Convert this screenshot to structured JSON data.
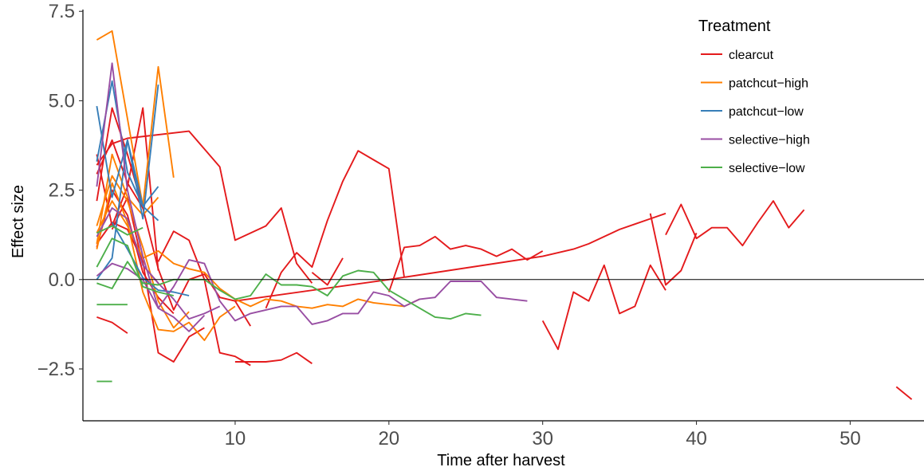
{
  "chart_data": {
    "type": "line",
    "xlabel": "Time after harvest",
    "ylabel": "Effect size",
    "xlim": [
      0.1,
      54.8
    ],
    "ylim": [
      -3.95,
      7.55
    ],
    "x_ticks": [
      10,
      20,
      30,
      40,
      50
    ],
    "y_ticks": [
      -2.5,
      0.0,
      2.5,
      5.0,
      7.5
    ],
    "x_tick_labels": [
      "10",
      "20",
      "30",
      "40",
      "50"
    ],
    "y_tick_labels": [
      "−2.5",
      "0.0",
      "2.5",
      "5.0",
      "7.5"
    ],
    "reference_line_y": 0,
    "grid": false,
    "legend": {
      "title": "Treatment",
      "position": "top-right",
      "entries": [
        {
          "label": "clearcut",
          "color": "#e41a1c"
        },
        {
          "label": "patchcut−high",
          "color": "#ff7f00"
        },
        {
          "label": "patchcut−low",
          "color": "#377eb8"
        },
        {
          "label": "selective−high",
          "color": "#984ea3"
        },
        {
          "label": "selective−low",
          "color": "#4daf4a"
        }
      ]
    },
    "series": [
      {
        "group": 0,
        "x": [
          1,
          2,
          3,
          7,
          9,
          10,
          12,
          13,
          14,
          15
        ],
        "y": [
          3.2,
          3.8,
          3.95,
          4.15,
          3.15,
          1.1,
          1.5,
          2.0,
          0.45,
          -0.1
        ]
      },
      {
        "group": 0,
        "x": [
          12,
          13,
          14,
          15,
          16,
          17,
          18,
          19,
          20,
          21
        ],
        "y": [
          -0.8,
          0.2,
          0.75,
          0.35,
          1.65,
          2.75,
          3.6,
          3.35,
          3.1,
          0.05
        ]
      },
      {
        "group": 0,
        "x": [
          10,
          11,
          12,
          13,
          14,
          15
        ],
        "y": [
          -2.3,
          -2.3,
          -2.3,
          -2.25,
          -2.05,
          -2.35
        ]
      },
      {
        "group": 0,
        "x": [
          20,
          21,
          22,
          23,
          24,
          25,
          26,
          27,
          28,
          29,
          30
        ],
        "y": [
          -0.35,
          0.9,
          0.95,
          1.2,
          0.85,
          0.95,
          0.85,
          0.65,
          0.85,
          0.55,
          0.8
        ]
      },
      {
        "group": 0,
        "x": [
          1,
          2,
          3
        ],
        "y": [
          -1.05,
          -1.2,
          -1.5
        ]
      },
      {
        "group": 0,
        "x": [
          1,
          2,
          3,
          4,
          5,
          6,
          7,
          8
        ],
        "y": [
          1.0,
          1.6,
          1.4,
          0.5,
          -2.05,
          -2.3,
          -1.6,
          -1.35
        ]
      },
      {
        "group": 0,
        "x": [
          1,
          2,
          3,
          4,
          5,
          6,
          7,
          8,
          9,
          10,
          11
        ],
        "y": [
          2.2,
          4.8,
          3.5,
          2.0,
          0.3,
          -0.85,
          0.0,
          0.15,
          -0.5,
          -0.6,
          -1.3
        ]
      },
      {
        "group": 0,
        "x": [
          5,
          6,
          7,
          8,
          9,
          10,
          11
        ],
        "y": [
          0.5,
          1.35,
          1.1,
          0.0,
          -2.05,
          -2.15,
          -2.4
        ]
      },
      {
        "group": 0,
        "x": [
          30,
          31,
          32,
          33,
          34,
          35,
          36,
          37,
          38
        ],
        "y": [
          -1.15,
          -1.95,
          -0.35,
          -0.6,
          0.4,
          -0.95,
          -0.75,
          0.4,
          -0.3
        ]
      },
      {
        "group": 0,
        "x": [
          38,
          39,
          40,
          41,
          42,
          43,
          44,
          45,
          46,
          47
        ],
        "y": [
          1.25,
          2.1,
          1.15,
          1.45,
          1.45,
          0.95,
          1.6,
          2.2,
          1.45,
          1.95
        ]
      },
      {
        "group": 0,
        "x": [
          37,
          38,
          39,
          40
        ],
        "y": [
          1.85,
          -0.15,
          0.25,
          1.3
        ]
      },
      {
        "group": 0,
        "x": [
          10,
          20,
          30,
          31,
          32,
          33,
          34,
          35,
          36,
          37,
          38
        ],
        "y": [
          -0.6,
          0.0,
          0.65,
          0.75,
          0.85,
          1.0,
          1.2,
          1.4,
          1.55,
          1.7,
          1.85
        ]
      },
      {
        "group": 0,
        "x": [
          53,
          54
        ],
        "y": [
          -3.0,
          -3.35
        ]
      },
      {
        "group": 0,
        "x": [
          1,
          2,
          3,
          4,
          5
        ],
        "y": [
          3.5,
          1.5,
          2.6,
          4.8,
          0.25
        ]
      },
      {
        "group": 0,
        "x": [
          1,
          2,
          3,
          4
        ],
        "y": [
          2.95,
          3.9,
          2.7,
          2.0
        ]
      },
      {
        "group": 0,
        "x": [
          2,
          3,
          4,
          5
        ],
        "y": [
          1.4,
          2.3,
          0.4,
          -0.1
        ]
      },
      {
        "group": 0,
        "x": [
          1,
          2,
          3,
          4,
          5,
          6
        ],
        "y": [
          0.9,
          2.5,
          1.8,
          0.2,
          -0.5,
          -0.95
        ]
      },
      {
        "group": 0,
        "x": [
          15,
          16,
          17
        ],
        "y": [
          0.2,
          -0.15,
          0.6
        ]
      },
      {
        "group": 1,
        "x": [
          1,
          2,
          3,
          4,
          5,
          6
        ],
        "y": [
          6.7,
          6.95,
          4.5,
          2.05,
          5.95,
          2.85
        ]
      },
      {
        "group": 1,
        "x": [
          1,
          2,
          3,
          4,
          5
        ],
        "y": [
          1.0,
          3.5,
          2.3,
          1.8,
          2.3
        ]
      },
      {
        "group": 1,
        "x": [
          1,
          2,
          3,
          4,
          5,
          6,
          7,
          8,
          9,
          10
        ],
        "y": [
          0.85,
          2.7,
          1.6,
          -0.35,
          -1.4,
          -1.45,
          -1.2,
          -1.7,
          -1.05,
          -0.75
        ]
      },
      {
        "group": 1,
        "x": [
          1,
          2,
          3,
          4,
          5,
          6,
          7,
          8,
          9,
          10,
          11,
          12,
          13,
          14,
          15,
          16,
          17,
          18,
          19,
          20,
          21,
          22
        ],
        "y": [
          1.3,
          2.2,
          1.5,
          0.6,
          0.8,
          0.45,
          0.3,
          0.2,
          -0.25,
          -0.55,
          -0.75,
          -0.55,
          -0.6,
          -0.75,
          -0.8,
          -0.7,
          -0.75,
          -0.55,
          -0.65,
          -0.7,
          -0.75,
          -0.55
        ]
      },
      {
        "group": 1,
        "x": [
          1,
          2,
          3,
          4,
          5,
          6,
          7
        ],
        "y": [
          1.5,
          2.9,
          2.2,
          0.9,
          -0.6,
          -1.35,
          -0.9
        ]
      },
      {
        "group": 2,
        "x": [
          1,
          2,
          3,
          4,
          5
        ],
        "y": [
          4.85,
          2.3,
          3.9,
          1.7,
          5.45
        ]
      },
      {
        "group": 2,
        "x": [
          1,
          2,
          3,
          4,
          5
        ],
        "y": [
          3.3,
          5.55,
          3.0,
          2.05,
          2.6
        ]
      },
      {
        "group": 2,
        "x": [
          1,
          2,
          3,
          4,
          5
        ],
        "y": [
          0.0,
          0.6,
          3.9,
          2.05,
          1.65
        ]
      },
      {
        "group": 2,
        "x": [
          2,
          3,
          4,
          5,
          6,
          7
        ],
        "y": [
          1.6,
          0.85,
          0.05,
          -0.3,
          -0.35,
          -0.45
        ]
      },
      {
        "group": 3,
        "x": [
          1,
          2,
          3,
          4,
          5,
          6,
          7,
          8
        ],
        "y": [
          2.6,
          6.05,
          2.5,
          0.65,
          -0.8,
          -1.05,
          -1.45,
          -1.0
        ]
      },
      {
        "group": 3,
        "x": [
          1,
          2,
          3,
          4,
          5,
          6,
          7,
          8,
          9,
          10,
          11,
          12,
          13,
          14,
          15,
          16,
          17,
          18,
          19,
          20,
          21,
          22,
          23,
          24,
          25,
          26,
          27,
          28,
          29
        ],
        "y": [
          0.1,
          0.45,
          0.3,
          0.0,
          -0.8,
          -0.2,
          0.55,
          0.45,
          -0.6,
          -1.15,
          -0.95,
          -0.85,
          -0.75,
          -0.75,
          -1.25,
          -1.15,
          -0.95,
          -0.95,
          -0.35,
          -0.45,
          -0.75,
          -0.55,
          -0.5,
          -0.05,
          -0.05,
          -0.05,
          -0.5,
          -0.55,
          -0.6
        ]
      },
      {
        "group": 3,
        "x": [
          1,
          2,
          3,
          4,
          5,
          6,
          7,
          8,
          9
        ],
        "y": [
          1.2,
          2.0,
          1.7,
          0.4,
          -0.1,
          -0.55,
          -1.1,
          -0.95,
          -0.75
        ]
      },
      {
        "group": 4,
        "x": [
          1,
          2,
          3
        ],
        "y": [
          -0.7,
          -0.7,
          -0.7
        ]
      },
      {
        "group": 4,
        "x": [
          1,
          2
        ],
        "y": [
          -2.85,
          -2.85
        ]
      },
      {
        "group": 4,
        "x": [
          1,
          2,
          3,
          4,
          5,
          6,
          7,
          8,
          9,
          10,
          11,
          12,
          13,
          14,
          15,
          16,
          17,
          18,
          19,
          20,
          21,
          22,
          23,
          24,
          25,
          26
        ],
        "y": [
          -0.1,
          -0.25,
          0.5,
          -0.1,
          -0.15,
          0.0,
          0.0,
          0.0,
          -0.3,
          -0.55,
          -0.45,
          0.15,
          -0.15,
          -0.15,
          -0.2,
          -0.45,
          0.1,
          0.25,
          0.2,
          -0.3,
          -0.55,
          -0.8,
          -1.05,
          -1.1,
          -0.95,
          -1.0
        ]
      },
      {
        "group": 4,
        "x": [
          1,
          2,
          3,
          4,
          5,
          6
        ],
        "y": [
          0.35,
          1.15,
          0.95,
          -0.2,
          -0.35,
          -0.45
        ]
      },
      {
        "group": 4,
        "x": [
          1,
          2,
          3,
          4
        ],
        "y": [
          1.3,
          1.5,
          1.25,
          1.45
        ]
      }
    ]
  }
}
